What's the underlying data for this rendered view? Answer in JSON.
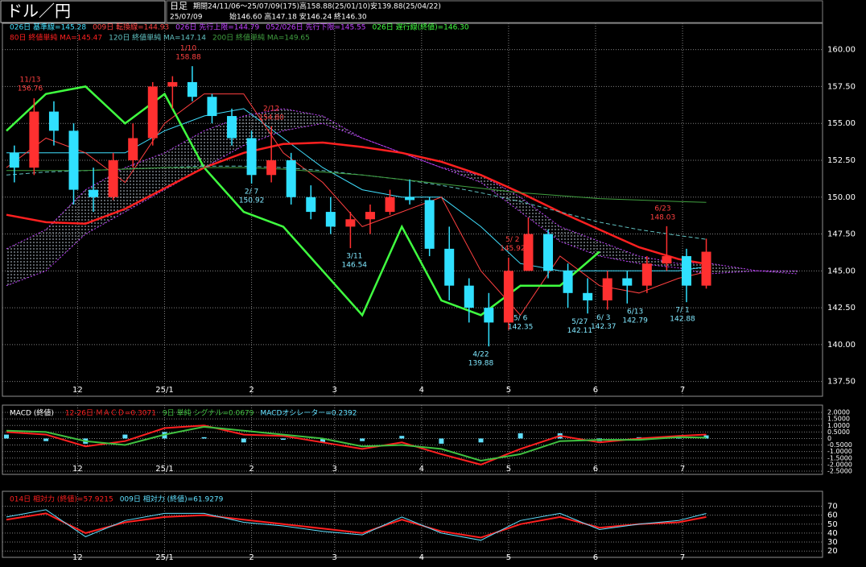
{
  "chart_data": [
    {
      "type": "candlestick",
      "title": "ドル／円",
      "timeframe": "日足",
      "period": "期間24/11/06～25/07/09(175)高158.88(25/01/10)安139.88(25/04/22)",
      "last_date": "25/07/09",
      "last_ohlc": "始146.60 高147.18 安146.24 終146.30",
      "up_color": "#ff3030",
      "down_color": "#30e0ff",
      "candles": {
        "x": [
          2,
          7,
          12,
          17,
          22,
          27,
          32,
          37,
          42,
          47,
          52,
          57,
          62,
          67,
          72,
          77,
          82,
          87,
          92,
          97,
          102,
          107,
          112,
          117,
          122,
          127,
          132,
          137,
          142,
          147,
          152,
          157,
          162,
          167,
          172,
          177
        ],
        "open": [
          153.0,
          152.0,
          155.8,
          154.5,
          150.5,
          150.0,
          152.5,
          154.0,
          157.5,
          157.8,
          156.8,
          155.5,
          154.0,
          151.5,
          152.5,
          150.0,
          149.0,
          148.0,
          148.5,
          149.0,
          150.0,
          149.8,
          146.5,
          144.0,
          142.5,
          141.5,
          145.0,
          147.5,
          145.0,
          143.5,
          143.0,
          144.5,
          144.0,
          145.5,
          146.0,
          144.0
        ],
        "high": [
          153.5,
          156.7,
          156.5,
          155.0,
          152.0,
          153.0,
          155.0,
          157.8,
          158.2,
          158.88,
          157.0,
          156.0,
          154.5,
          154.8,
          153.0,
          150.8,
          150.0,
          149.0,
          149.5,
          150.5,
          151.2,
          150.0,
          148.0,
          144.5,
          143.5,
          145.9,
          148.6,
          147.8,
          145.5,
          144.5,
          145.0,
          145.0,
          146.0,
          148.03,
          146.5,
          147.18
        ],
        "low": [
          151.0,
          151.5,
          153.5,
          149.5,
          149.0,
          149.8,
          152.0,
          153.5,
          156.0,
          156.5,
          155.0,
          153.5,
          150.92,
          151.0,
          149.5,
          148.5,
          147.5,
          146.54,
          147.5,
          148.8,
          149.5,
          146.0,
          143.0,
          141.5,
          139.88,
          141.0,
          145.0,
          144.5,
          142.5,
          142.11,
          142.37,
          142.79,
          143.5,
          145.0,
          142.88,
          143.8
        ],
        "close": [
          152.0,
          155.8,
          154.5,
          150.5,
          150.0,
          152.5,
          154.0,
          157.5,
          157.8,
          156.8,
          155.5,
          154.0,
          151.5,
          152.5,
          150.0,
          149.0,
          148.0,
          148.5,
          149.0,
          150.0,
          149.8,
          146.5,
          144.0,
          142.5,
          141.5,
          145.0,
          147.5,
          145.0,
          143.5,
          143.0,
          144.5,
          144.0,
          145.5,
          146.0,
          144.0,
          146.3
        ]
      },
      "line_x": [
        0,
        10,
        20,
        30,
        40,
        50,
        60,
        70,
        80,
        90,
        100,
        110,
        120,
        130,
        140,
        150,
        160,
        170,
        177,
        190,
        200
      ],
      "series": [
        {
          "name": "026日 基準線=145.28",
          "color": "#40e0ff",
          "width": 1,
          "values": [
            153,
            153,
            153,
            153,
            154.5,
            155.5,
            156,
            154,
            152,
            150.5,
            150,
            150,
            148,
            145.5,
            145,
            145,
            145,
            145,
            145.28,
            null,
            null
          ]
        },
        {
          "name": "009日 転換線=144.93",
          "color": "#ff4040",
          "width": 1,
          "values": [
            152,
            154,
            153,
            151,
            155,
            157,
            157,
            153,
            151,
            148,
            149,
            150,
            145,
            142,
            146,
            144,
            143.5,
            144.5,
            144.93,
            null,
            null
          ]
        },
        {
          "name": "026日 先行上限=144.79",
          "color": "#c040ff",
          "width": 1,
          "values": [
            146.5,
            147.8,
            150.5,
            152,
            153,
            154.5,
            155.5,
            156,
            155.5,
            154,
            153,
            152,
            151,
            149,
            147,
            146,
            145.5,
            145.2,
            144.79,
            145,
            145
          ]
        },
        {
          "name": "052/026日 先行下限=145.55",
          "color": "#c040ff",
          "width": 1,
          "values": [
            144,
            145,
            147.5,
            149,
            150.5,
            152,
            153.5,
            154.5,
            155,
            154,
            153,
            152,
            151.5,
            150,
            148,
            147,
            146,
            145.5,
            145.55,
            145,
            144.8
          ]
        },
        {
          "name": "026日 遅行線(終値)=146.30",
          "color": "#40ff40",
          "width": 2.5,
          "values": [
            154.5,
            157,
            157.5,
            155,
            157,
            152,
            149,
            148,
            145,
            142,
            148,
            143,
            142,
            144,
            144,
            146.3,
            null,
            null,
            null,
            null,
            null
          ]
        },
        {
          "name": "80日 終値単純 MA=145.47",
          "color": "#ff2020",
          "width": 2.5,
          "values": [
            148.8,
            148.3,
            148.2,
            149.2,
            150.6,
            152.0,
            153.0,
            153.6,
            153.7,
            153.4,
            153.0,
            152.4,
            151.5,
            150.3,
            149.0,
            147.8,
            146.6,
            145.8,
            145.47,
            null,
            null
          ]
        },
        {
          "name": "120日 終値単純 MA=147.14",
          "color": "#60c0c0",
          "width": 1,
          "dashed": true,
          "values": [
            151.5,
            151.7,
            151.8,
            151.9,
            152.0,
            152.1,
            152.1,
            152.0,
            151.8,
            151.5,
            151.2,
            150.8,
            150.3,
            149.7,
            149.0,
            148.3,
            147.8,
            147.4,
            147.14,
            null,
            null
          ]
        },
        {
          "name": "200日 終値単純 MA=149.65",
          "color": "#40a040",
          "width": 1,
          "values": [
            151.8,
            151.8,
            151.8,
            151.9,
            152.0,
            152.0,
            152.0,
            151.9,
            151.7,
            151.5,
            151.2,
            150.9,
            150.6,
            150.3,
            150.1,
            149.9,
            149.8,
            149.7,
            149.65,
            null,
            null
          ]
        }
      ],
      "cloud_series": [
        2,
        3
      ],
      "annotations": [
        {
          "date": "11/13",
          "x": 6,
          "value": 156.76,
          "kind": "high"
        },
        {
          "date": "1/10",
          "x": 46,
          "value": 158.88,
          "kind": "high"
        },
        {
          "date": "2/12",
          "x": 67,
          "value": 154.8,
          "value_label": "154.80",
          "kind": "high"
        },
        {
          "date": "2/ 7",
          "x": 62,
          "value": 150.92,
          "kind": "low"
        },
        {
          "date": "3/11",
          "x": 88,
          "value": 146.54,
          "kind": "low"
        },
        {
          "date": "4/22",
          "x": 120,
          "value": 139.88,
          "kind": "low"
        },
        {
          "date": "5/ 2",
          "x": 128,
          "value": 145.92,
          "kind": "high"
        },
        {
          "date": "5/ 6",
          "x": 130,
          "value": 142.35,
          "kind": "low"
        },
        {
          "date": "5/27",
          "x": 145,
          "value": 142.11,
          "kind": "low"
        },
        {
          "date": "6/ 3",
          "x": 151,
          "value": 142.37,
          "kind": "low"
        },
        {
          "date": "6/13",
          "x": 159,
          "value": 142.79,
          "kind": "low"
        },
        {
          "date": "6/23",
          "x": 166,
          "value": 148.03,
          "kind": "high"
        },
        {
          "date": "7/ 1",
          "x": 171,
          "value": 142.88,
          "kind": "low"
        }
      ],
      "xlim": [
        0,
        206
      ],
      "ylim": [
        136.5,
        161.4
      ],
      "xticks": [
        {
          "value": 18,
          "label": "12"
        },
        {
          "value": 40,
          "label": "25/1"
        },
        {
          "value": 62,
          "label": "2"
        },
        {
          "value": 83,
          "label": "3"
        },
        {
          "value": 105,
          "label": "4"
        },
        {
          "value": 127,
          "label": "5"
        },
        {
          "value": 149,
          "label": "6"
        },
        {
          "value": 171,
          "label": "7"
        }
      ],
      "yticks": [
        {
          "value": 160,
          "label": "160.00"
        },
        {
          "value": 157.5,
          "label": "157.50"
        },
        {
          "value": 155,
          "label": "155.00"
        },
        {
          "value": 152.5,
          "label": "152.50"
        },
        {
          "value": 150,
          "label": "150.00"
        },
        {
          "value": 147.5,
          "label": "147.50"
        },
        {
          "value": 145,
          "label": "145.00"
        },
        {
          "value": 142.5,
          "label": "142.50"
        },
        {
          "value": 140,
          "label": "140.00"
        },
        {
          "value": 137.5,
          "label": "137.50"
        }
      ],
      "grid": true
    },
    {
      "type": "combo",
      "title": "MACD (終値)",
      "x": [
        0,
        10,
        20,
        30,
        40,
        50,
        60,
        70,
        80,
        90,
        100,
        110,
        120,
        130,
        140,
        150,
        160,
        170,
        177
      ],
      "series": [
        {
          "name": "12-26日 ＭＡＣＤ=0.3071",
          "color": "#ff2020",
          "kind": "line",
          "values": [
            0.5,
            0.3,
            -0.6,
            -0.2,
            0.8,
            1.0,
            0.3,
            0.2,
            -0.3,
            -0.8,
            -0.3,
            -1.2,
            -2.0,
            -0.8,
            0.2,
            -0.3,
            0.0,
            0.2,
            0.3071
          ]
        },
        {
          "name": "9日 単純 シグナル=0.0679",
          "color": "#40c040",
          "kind": "line",
          "values": [
            0.6,
            0.5,
            -0.2,
            -0.5,
            0.3,
            0.9,
            0.6,
            0.3,
            0.0,
            -0.6,
            -0.5,
            -0.8,
            -1.7,
            -1.2,
            -0.2,
            -0.1,
            -0.1,
            0.1,
            0.0679
          ]
        },
        {
          "name": "MACDオシレーター=0.2392",
          "color": "#60e0ff",
          "kind": "bar",
          "values": [
            0.3,
            -0.2,
            -0.4,
            0.3,
            0.5,
            0.1,
            -0.3,
            -0.1,
            -0.3,
            -0.2,
            0.2,
            -0.4,
            -0.3,
            0.4,
            0.4,
            -0.2,
            0.1,
            0.1,
            0.2392
          ]
        }
      ],
      "xlim": [
        0,
        206
      ],
      "ylim": [
        -2.75,
        2.25
      ],
      "xticks": [
        {
          "value": 18,
          "label": "12"
        },
        {
          "value": 40,
          "label": "25/1"
        },
        {
          "value": 62,
          "label": "2"
        },
        {
          "value": 83,
          "label": "3"
        },
        {
          "value": 105,
          "label": "4"
        },
        {
          "value": 127,
          "label": "5"
        },
        {
          "value": 149,
          "label": "6"
        },
        {
          "value": 171,
          "label": "7"
        }
      ],
      "yticks": [
        {
          "value": 2,
          "label": "2.0000"
        },
        {
          "value": 1.5,
          "label": "1.5000"
        },
        {
          "value": 1,
          "label": "1.0000"
        },
        {
          "value": 0.5,
          "label": "0.5000"
        },
        0,
        {
          "value": -0.5,
          "label": "-0.5000"
        },
        {
          "value": -1,
          "label": "-1.0000"
        },
        {
          "value": -1.5,
          "label": "-1.5000"
        },
        {
          "value": -2,
          "label": "-2.0000"
        },
        {
          "value": -2.5,
          "label": "-2.5000"
        }
      ],
      "grid": true
    },
    {
      "type": "line",
      "x": [
        0,
        10,
        20,
        30,
        40,
        50,
        60,
        70,
        80,
        90,
        100,
        110,
        120,
        130,
        140,
        150,
        160,
        170,
        177
      ],
      "series": [
        {
          "name": "014日 相対力 (終値)=57.9215",
          "color": "#ff2020",
          "values": [
            55,
            62,
            40,
            52,
            58,
            60,
            55,
            50,
            45,
            40,
            55,
            42,
            35,
            50,
            58,
            46,
            50,
            52,
            57.9215
          ]
        },
        {
          "name": "009日 相対力 (終値)=61.9279",
          "color": "#60e0ff",
          "values": [
            58,
            66,
            36,
            54,
            62,
            62,
            52,
            48,
            42,
            38,
            58,
            40,
            32,
            54,
            62,
            44,
            50,
            54,
            61.9279
          ]
        }
      ],
      "xlim": [
        0,
        206
      ],
      "ylim": [
        13,
        83
      ],
      "xticks": [
        {
          "value": 18,
          "label": "12"
        },
        {
          "value": 40,
          "label": "25/1"
        },
        {
          "value": 62,
          "label": "2"
        },
        {
          "value": 83,
          "label": "3"
        },
        {
          "value": 105,
          "label": "4"
        },
        {
          "value": 127,
          "label": "5"
        },
        {
          "value": 149,
          "label": "6"
        },
        {
          "value": 171,
          "label": "7"
        }
      ],
      "yticks": [
        70,
        60,
        50,
        40,
        30,
        20
      ],
      "grid": true
    }
  ]
}
